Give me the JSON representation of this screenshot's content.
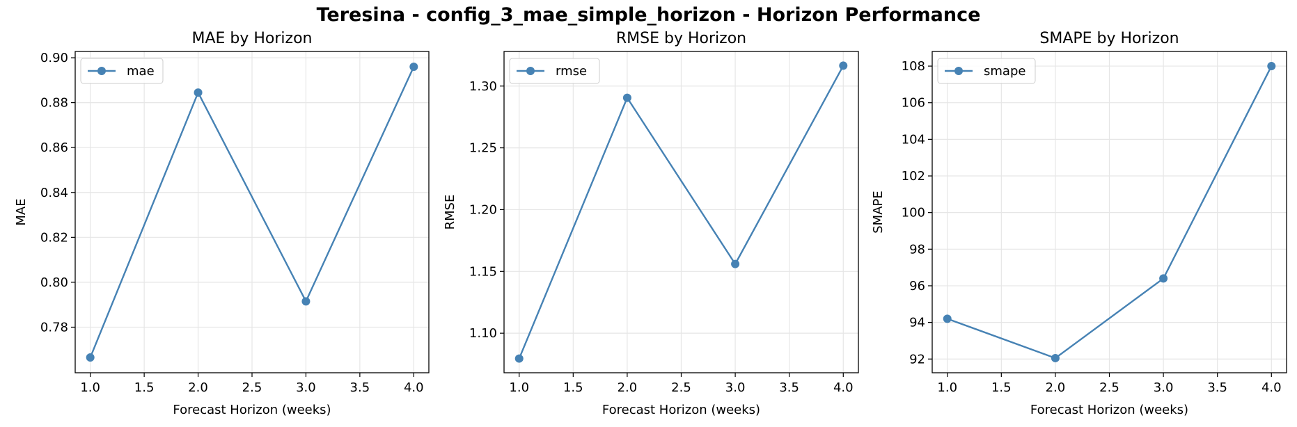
{
  "suptitle": "Teresina - config_3_mae_simple_horizon - Horizon Performance",
  "colors": {
    "line": "#4682b4",
    "grid": "#e6e6e6",
    "axes": "#000000"
  },
  "chart_data": [
    {
      "type": "line",
      "title": "MAE by Horizon",
      "xlabel": "Forecast Horizon (weeks)",
      "ylabel": "MAE",
      "x": [
        1.0,
        2.0,
        3.0,
        4.0
      ],
      "series": [
        {
          "name": "mae",
          "values": [
            0.7665,
            0.8845,
            0.7915,
            0.896
          ]
        }
      ],
      "xlim": [
        0.86,
        4.14
      ],
      "ylim": [
        0.7597,
        0.9028
      ],
      "xticks": [
        1.0,
        1.5,
        2.0,
        2.5,
        3.0,
        3.5,
        4.0
      ],
      "xtick_labels": [
        "1.0",
        "1.5",
        "2.0",
        "2.5",
        "3.0",
        "3.5",
        "4.0"
      ],
      "yticks": [
        0.78,
        0.8,
        0.82,
        0.84,
        0.86,
        0.88,
        0.9
      ],
      "ytick_labels": [
        "0.78",
        "0.80",
        "0.82",
        "0.84",
        "0.86",
        "0.88",
        "0.90"
      ],
      "grid": true,
      "legend": "upper left",
      "marker": "circle"
    },
    {
      "type": "line",
      "title": "RMSE by Horizon",
      "xlabel": "Forecast Horizon (weeks)",
      "ylabel": "RMSE",
      "x": [
        1.0,
        2.0,
        3.0,
        4.0
      ],
      "series": [
        {
          "name": "rmse",
          "values": [
            1.0795,
            1.2905,
            1.156,
            1.3165
          ]
        }
      ],
      "xlim": [
        0.86,
        4.14
      ],
      "ylim": [
        1.068,
        1.328
      ],
      "xticks": [
        1.0,
        1.5,
        2.0,
        2.5,
        3.0,
        3.5,
        4.0
      ],
      "xtick_labels": [
        "1.0",
        "1.5",
        "2.0",
        "2.5",
        "3.0",
        "3.5",
        "4.0"
      ],
      "yticks": [
        1.1,
        1.15,
        1.2,
        1.25,
        1.3
      ],
      "ytick_labels": [
        "1.10",
        "1.15",
        "1.20",
        "1.25",
        "1.30"
      ],
      "grid": true,
      "legend": "upper left",
      "marker": "circle"
    },
    {
      "type": "line",
      "title": "SMAPE by Horizon",
      "xlabel": "Forecast Horizon (weeks)",
      "ylabel": "SMAPE",
      "x": [
        1.0,
        2.0,
        3.0,
        4.0
      ],
      "series": [
        {
          "name": "smape",
          "values": [
            94.2,
            92.05,
            96.4,
            108.0
          ]
        }
      ],
      "xlim": [
        0.86,
        4.14
      ],
      "ylim": [
        91.25,
        108.8
      ],
      "xticks": [
        1.0,
        1.5,
        2.0,
        2.5,
        3.0,
        3.5,
        4.0
      ],
      "xtick_labels": [
        "1.0",
        "1.5",
        "2.0",
        "2.5",
        "3.0",
        "3.5",
        "4.0"
      ],
      "yticks": [
        92,
        94,
        96,
        98,
        100,
        102,
        104,
        106,
        108
      ],
      "ytick_labels": [
        "92",
        "94",
        "96",
        "98",
        "100",
        "102",
        "104",
        "106",
        "108"
      ],
      "grid": true,
      "legend": "upper left",
      "marker": "circle"
    }
  ]
}
